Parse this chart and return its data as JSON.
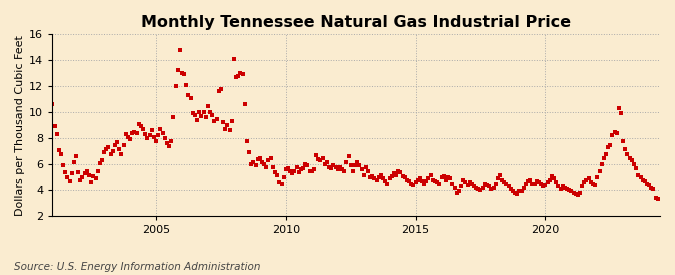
{
  "title": "Monthly Tennessee Natural Gas Industrial Price",
  "ylabel": "Dollars per Thousand Cubic Feet",
  "source": "Source: U.S. Energy Information Administration",
  "bg_color": "#faecd0",
  "plot_bg_color": "#faecd0",
  "line_color": "#cc0000",
  "marker": "s",
  "marker_size": 2.8,
  "ylim": [
    2,
    16
  ],
  "yticks": [
    2,
    4,
    6,
    8,
    10,
    12,
    14,
    16
  ],
  "xtick_years": [
    2005,
    2010,
    2015,
    2020
  ],
  "grid_color": "#aaaaaa",
  "title_fontsize": 11.5,
  "label_fontsize": 8,
  "source_fontsize": 7.5,
  "data": [
    10.6,
    8.9,
    8.3,
    7.1,
    6.8,
    5.9,
    5.4,
    5.0,
    4.7,
    5.3,
    6.2,
    6.6,
    5.4,
    4.8,
    5.0,
    5.3,
    5.5,
    5.2,
    4.6,
    5.1,
    4.9,
    5.5,
    6.1,
    6.3,
    6.9,
    7.2,
    7.3,
    6.8,
    7.0,
    7.5,
    7.7,
    7.2,
    6.8,
    7.5,
    8.3,
    8.1,
    7.9,
    8.4,
    8.5,
    8.4,
    9.1,
    8.9,
    8.7,
    8.3,
    8.0,
    8.2,
    8.6,
    8.1,
    7.8,
    8.2,
    8.7,
    8.4,
    8.0,
    7.6,
    7.4,
    7.8,
    9.6,
    12.0,
    13.2,
    14.8,
    13.0,
    12.9,
    12.1,
    11.3,
    11.1,
    9.9,
    9.8,
    9.4,
    10.0,
    9.7,
    10.0,
    9.6,
    10.5,
    10.0,
    9.8,
    9.3,
    9.5,
    11.6,
    11.8,
    9.2,
    8.7,
    9.0,
    8.6,
    9.3,
    14.1,
    12.7,
    12.8,
    13.0,
    12.9,
    10.6,
    7.8,
    6.9,
    6.0,
    6.2,
    5.9,
    6.4,
    6.5,
    6.2,
    6.0,
    5.8,
    6.3,
    6.5,
    5.8,
    5.4,
    5.2,
    4.6,
    4.5,
    5.0,
    5.6,
    5.7,
    5.5,
    5.3,
    5.5,
    5.8,
    5.4,
    5.6,
    5.7,
    6.0,
    5.9,
    5.5,
    5.5,
    5.6,
    6.7,
    6.4,
    6.3,
    6.5,
    6.0,
    6.2,
    5.8,
    5.7,
    5.9,
    5.8,
    5.6,
    5.8,
    5.6,
    5.5,
    6.2,
    6.6,
    5.9,
    5.5,
    5.9,
    6.2,
    5.9,
    5.6,
    5.2,
    5.8,
    5.5,
    5.0,
    5.1,
    4.9,
    4.8,
    5.0,
    5.2,
    4.9,
    4.7,
    4.5,
    4.9,
    5.1,
    5.3,
    5.2,
    5.5,
    5.4,
    5.1,
    5.0,
    4.8,
    4.7,
    4.5,
    4.4,
    4.6,
    4.8,
    4.9,
    4.7,
    4.5,
    4.7,
    4.9,
    5.2,
    4.8,
    4.7,
    4.6,
    4.5,
    5.0,
    5.1,
    4.8,
    5.0,
    4.9,
    4.5,
    4.2,
    3.8,
    3.9,
    4.3,
    4.8,
    4.6,
    4.4,
    4.6,
    4.5,
    4.3,
    4.2,
    4.1,
    4.0,
    4.2,
    4.5,
    4.4,
    4.3,
    4.1,
    4.2,
    4.5,
    4.9,
    5.2,
    4.8,
    4.6,
    4.5,
    4.3,
    4.1,
    3.9,
    3.8,
    3.7,
    3.9,
    3.9,
    4.2,
    4.5,
    4.7,
    4.8,
    4.5,
    4.5,
    4.7,
    4.6,
    4.5,
    4.3,
    4.4,
    4.6,
    4.8,
    5.1,
    4.9,
    4.6,
    4.3,
    4.1,
    4.3,
    4.2,
    4.1,
    4.0,
    3.9,
    3.8,
    3.7,
    3.6,
    3.8,
    4.3,
    4.6,
    4.8,
    4.9,
    4.6,
    4.5,
    4.4,
    5.0,
    5.5,
    6.0,
    6.5,
    6.8,
    7.3,
    7.5,
    8.2,
    8.5,
    8.4,
    10.3,
    9.9,
    7.8,
    7.2,
    6.8,
    6.5,
    6.3,
    6.0,
    5.7,
    5.2,
    5.0,
    4.8,
    4.7,
    4.5,
    4.4,
    4.2,
    4.1,
    3.4,
    3.3
  ],
  "start_year": 2001,
  "start_month": 1
}
